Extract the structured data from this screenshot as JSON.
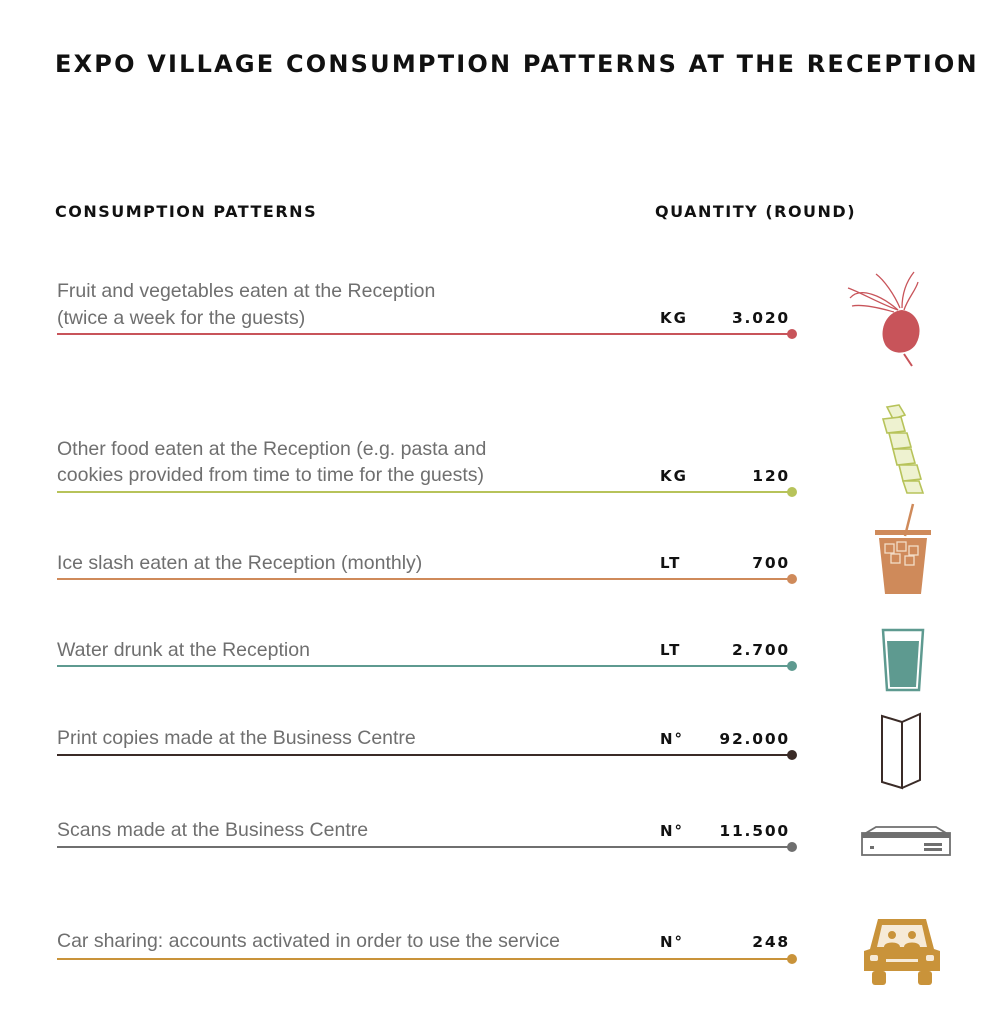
{
  "title": "EXPO VILLAGE CONSUMPTION PATTERNS AT THE RECEPTION",
  "headers": {
    "left": "CONSUMPTION PATTERNS",
    "right": "QUANTITY (ROUND)"
  },
  "rows": [
    {
      "line1": "Fruit and vegetables eaten at the Reception",
      "line2": "(twice a week for the guests)",
      "unit": "KG",
      "quantity": "3.020",
      "color": "#c8545a",
      "icon": "beet-icon"
    },
    {
      "line1": "Other food eaten at the Reception (e.g. pasta and",
      "line2": "cookies provided from time to time for the guests)",
      "unit": "KG",
      "quantity": "120",
      "color": "#b7c35a",
      "icon": "pasta-icon"
    },
    {
      "line1": "Ice slash eaten at the Reception (monthly)",
      "unit": "LT",
      "quantity": "700",
      "color": "#cf8a5a",
      "icon": "iced-drink-icon"
    },
    {
      "line1": "Water drunk at the Reception",
      "unit": "LT",
      "quantity": "2.700",
      "color": "#5e9a90",
      "icon": "water-glass-icon"
    },
    {
      "line1": "Print copies made at the Business Centre",
      "unit": "N°",
      "quantity": "92.000",
      "color": "#3a2b27",
      "icon": "folded-paper-icon"
    },
    {
      "line1": "Scans made at the Business Centre",
      "unit": "N°",
      "quantity": "11.500",
      "color": "#6f6f6f",
      "icon": "scanner-icon"
    },
    {
      "line1": "Car sharing: accounts activated in order to use the service",
      "unit": "N°",
      "quantity": "248",
      "color": "#c9933a",
      "icon": "car-icon"
    }
  ]
}
